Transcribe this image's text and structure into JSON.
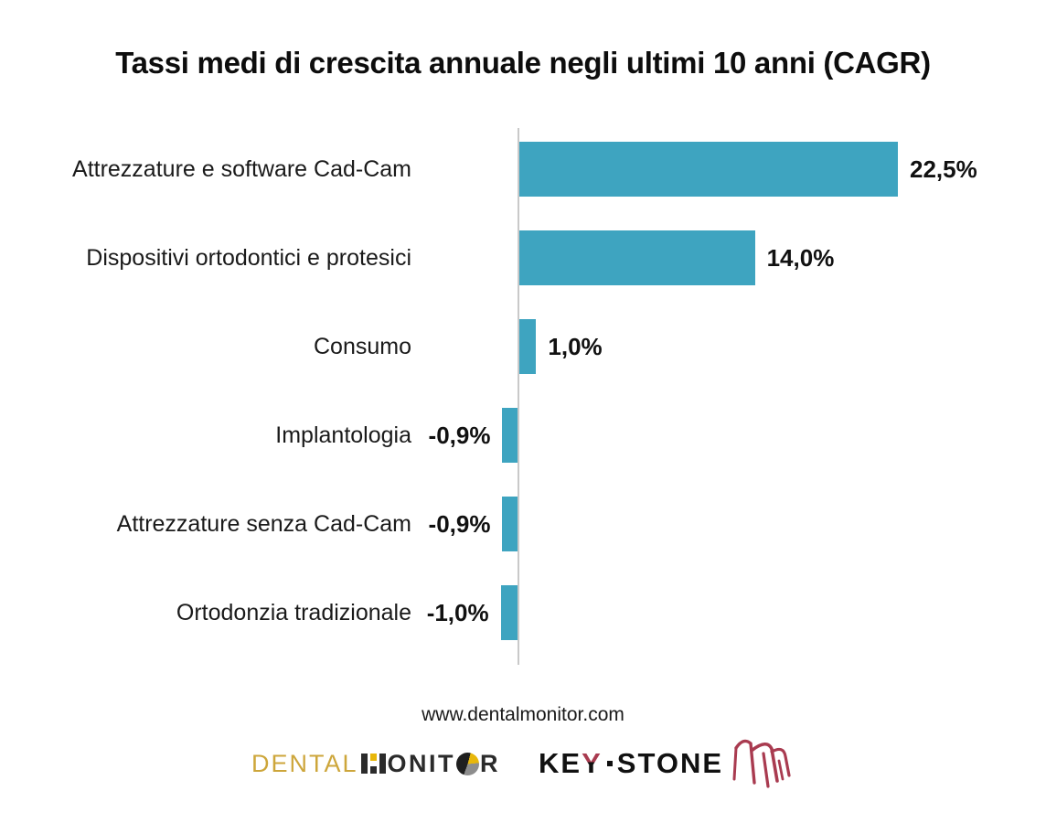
{
  "title": "Tassi medi di crescita annuale negli ultimi 10 anni (CAGR)",
  "chart_data": {
    "type": "bar",
    "orientation": "horizontal",
    "title": "Tassi medi di crescita annuale negli ultimi 10 anni (CAGR)",
    "categories": [
      "Attrezzature e software Cad-Cam",
      "Dispositivi ortodontici e protesici",
      "Consumo",
      "Implantologia",
      "Attrezzature senza Cad-Cam",
      "Ortodonzia tradizionale"
    ],
    "values": [
      22.5,
      14.0,
      1.0,
      -0.9,
      -0.9,
      -1.0
    ],
    "value_labels": [
      "22,5%",
      "14,0%",
      "1,0%",
      "-0,9%",
      "-0,9%",
      "-1,0%"
    ],
    "unit": "percent",
    "xlim": [
      -2,
      25
    ],
    "grid": false,
    "legend": false,
    "baseline_axis": "vertical-at-zero",
    "bar_color": "#3ea4c0",
    "axis_color": "#c9c9c9"
  },
  "footer": {
    "website": "www.dentalmonitor.com",
    "dental_monitor_logo": {
      "name": "DENTAL MONITOR",
      "part_dental": "DENTAL",
      "part_onit": "ONIT",
      "part_r": "R",
      "gold_color": "#cda63b",
      "dark_color": "#2b2b2b"
    },
    "key_stone_logo": {
      "name": "KEY-STONE",
      "part_ke": "KE",
      "part_y": "Y",
      "part_stone": "STONE",
      "black_color": "#111111",
      "red_color": "#a93b50"
    }
  }
}
